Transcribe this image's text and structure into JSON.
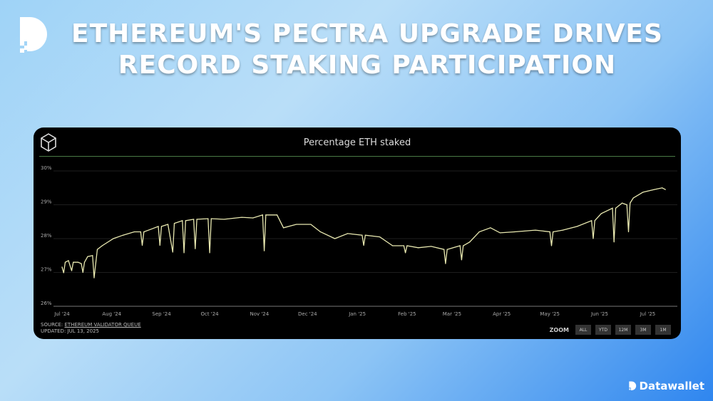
{
  "headline": [
    "ETHEREUM'S PECTRA UPGRADE DRIVES",
    "RECORD STAKING PARTICIPATION"
  ],
  "brand": "Datawallet",
  "footer": {
    "source_label": "SOURCE:",
    "source_link": "ETHEREUM VALIDATOR QUEUE",
    "updated": "UPDATED: JUL 13, 2025"
  },
  "zoom": {
    "label": "ZOOM",
    "buttons": [
      "ALL",
      "YTD",
      "12M",
      "3M",
      "1M"
    ]
  },
  "colors": {
    "line": "#e8e8b0",
    "accent": "#4a7a45",
    "background": "#000000"
  },
  "chart_data": {
    "type": "line",
    "title": "Percentage ETH staked",
    "xlabel": "",
    "ylabel": "",
    "ylim": [
      26,
      30
    ],
    "yticks": [
      "26%",
      "27%",
      "28%",
      "29%",
      "30%"
    ],
    "xlim": [
      "2024-07-01",
      "2025-07-15"
    ],
    "xticks": [
      [
        "2024-07-01",
        "Jul '24"
      ],
      [
        "2024-08-01",
        "Aug '24"
      ],
      [
        "2024-09-01",
        "Sep '24"
      ],
      [
        "2024-10-01",
        "Oct '24"
      ],
      [
        "2024-11-01",
        "Nov '24"
      ],
      [
        "2024-12-01",
        "Dec '24"
      ],
      [
        "2025-01-01",
        "Jan '25"
      ],
      [
        "2025-02-01",
        "Feb '25"
      ],
      [
        "2025-03-01",
        "Mar '25"
      ],
      [
        "2025-04-01",
        "Apr '25"
      ],
      [
        "2025-05-01",
        "May '25"
      ],
      [
        "2025-06-01",
        "Jun '25"
      ],
      [
        "2025-07-01",
        "Jul '25"
      ]
    ],
    "grid": true,
    "points": [
      [
        "2024-07-01",
        27.16
      ],
      [
        "2024-07-02",
        26.99
      ],
      [
        "2024-07-03",
        27.3
      ],
      [
        "2024-07-05",
        27.35
      ],
      [
        "2024-07-07",
        27.05
      ],
      [
        "2024-07-08",
        27.3
      ],
      [
        "2024-07-11",
        27.3
      ],
      [
        "2024-07-13",
        27.26
      ],
      [
        "2024-07-14",
        27.0
      ],
      [
        "2024-07-15",
        27.3
      ],
      [
        "2024-07-17",
        27.47
      ],
      [
        "2024-07-20",
        27.5
      ],
      [
        "2024-07-21",
        26.84
      ],
      [
        "2024-07-23",
        27.68
      ],
      [
        "2024-07-26",
        27.79
      ],
      [
        "2024-08-02",
        28.0
      ],
      [
        "2024-08-08",
        28.1
      ],
      [
        "2024-08-15",
        28.2
      ],
      [
        "2024-08-19",
        28.2
      ],
      [
        "2024-08-20",
        27.8
      ],
      [
        "2024-08-21",
        28.2
      ],
      [
        "2024-08-25",
        28.27
      ],
      [
        "2024-08-30",
        28.36
      ],
      [
        "2024-08-31",
        27.8
      ],
      [
        "2024-09-01",
        28.36
      ],
      [
        "2024-09-05",
        28.42
      ],
      [
        "2024-09-08",
        27.6
      ],
      [
        "2024-09-09",
        28.45
      ],
      [
        "2024-09-14",
        28.53
      ],
      [
        "2024-09-15",
        27.58
      ],
      [
        "2024-09-16",
        28.53
      ],
      [
        "2024-09-21",
        28.57
      ],
      [
        "2024-09-22",
        27.7
      ],
      [
        "2024-09-23",
        28.57
      ],
      [
        "2024-09-30",
        28.59
      ],
      [
        "2024-10-01",
        27.58
      ],
      [
        "2024-10-02",
        28.59
      ],
      [
        "2024-10-10",
        28.57
      ],
      [
        "2024-10-21",
        28.63
      ],
      [
        "2024-10-28",
        28.61
      ],
      [
        "2024-11-03",
        28.7
      ],
      [
        "2024-11-04",
        27.64
      ],
      [
        "2024-11-05",
        28.7
      ],
      [
        "2024-11-12",
        28.7
      ],
      [
        "2024-11-16",
        28.32
      ],
      [
        "2024-11-24",
        28.42
      ],
      [
        "2024-12-03",
        28.42
      ],
      [
        "2024-12-09",
        28.2
      ],
      [
        "2024-12-18",
        28.0
      ],
      [
        "2024-12-26",
        28.15
      ],
      [
        "2025-01-04",
        28.1
      ],
      [
        "2025-01-05",
        27.8
      ],
      [
        "2025-01-06",
        28.1
      ],
      [
        "2025-01-15",
        28.05
      ],
      [
        "2025-01-23",
        27.79
      ],
      [
        "2025-01-30",
        27.79
      ],
      [
        "2025-01-31",
        27.58
      ],
      [
        "2025-02-01",
        27.79
      ],
      [
        "2025-02-08",
        27.73
      ],
      [
        "2025-02-16",
        27.77
      ],
      [
        "2025-02-24",
        27.68
      ],
      [
        "2025-02-25",
        27.26
      ],
      [
        "2025-02-26",
        27.68
      ],
      [
        "2025-03-06",
        27.79
      ],
      [
        "2025-03-07",
        27.37
      ],
      [
        "2025-03-08",
        27.79
      ],
      [
        "2025-03-12",
        27.9
      ],
      [
        "2025-03-18",
        28.2
      ],
      [
        "2025-03-25",
        28.32
      ],
      [
        "2025-03-31",
        28.17
      ],
      [
        "2025-04-09",
        28.2
      ],
      [
        "2025-04-22",
        28.25
      ],
      [
        "2025-05-01",
        28.2
      ],
      [
        "2025-05-02",
        27.79
      ],
      [
        "2025-05-03",
        28.2
      ],
      [
        "2025-05-09",
        28.25
      ],
      [
        "2025-05-18",
        28.36
      ],
      [
        "2025-05-27",
        28.53
      ],
      [
        "2025-05-28",
        28.0
      ],
      [
        "2025-05-29",
        28.53
      ],
      [
        "2025-06-02",
        28.74
      ],
      [
        "2025-06-09",
        28.9
      ],
      [
        "2025-06-10",
        27.9
      ],
      [
        "2025-06-11",
        28.9
      ],
      [
        "2025-06-15",
        29.05
      ],
      [
        "2025-06-18",
        29.0
      ],
      [
        "2025-06-19",
        28.2
      ],
      [
        "2025-06-20",
        29.05
      ],
      [
        "2025-06-22",
        29.2
      ],
      [
        "2025-06-28",
        29.37
      ],
      [
        "2025-07-05",
        29.45
      ],
      [
        "2025-07-10",
        29.5
      ],
      [
        "2025-07-12",
        29.45
      ]
    ]
  }
}
